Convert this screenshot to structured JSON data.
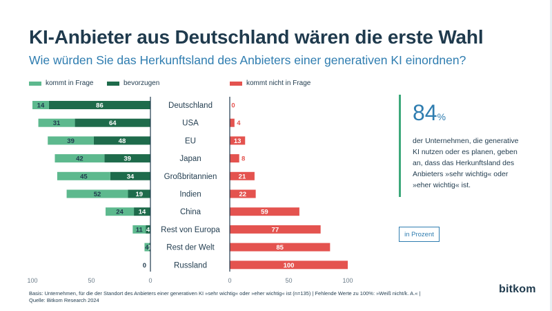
{
  "title": "KI-Anbieter aus Deutschland wären die erste Wahl",
  "subtitle": "Wie würden Sie das Herkunftsland des Anbieters einer generativen KI einordnen?",
  "legend": {
    "kommt_in_frage": "kommt in Frage",
    "bevorzugen": "bevorzugen",
    "kommt_nicht_in_frage": "kommt nicht in Frage"
  },
  "colors": {
    "kommt_in_frage": "#5db98e",
    "bevorzugen": "#1e6b4b",
    "kommt_nicht_in_frage": "#e4534f",
    "title": "#1f3a4d",
    "subtitle": "#2f7db0"
  },
  "callout": {
    "value": "84",
    "unit": "%",
    "text_lines": [
      "der Unternehmen, die generative",
      "KI nutzen oder es planen, geben",
      "an, dass das Herkunftsland des",
      "Anbieters »sehr wichtig« oder",
      "»eher wichtig« ist."
    ]
  },
  "unit_label": "in Prozent",
  "footnote": {
    "line1": "Basis: Unternehmen, für die der Standort des Anbieters einer generativen KI »sehr wichtig« oder »eher wichtig« ist (n=135) | Fehlende Werte zu 100%: »Weiß nicht/k. A.« |",
    "line2": "Quelle: Bitkom Research 2024"
  },
  "logo": "bitkom",
  "chart_data": {
    "type": "bar",
    "orientation": "horizontal",
    "categories": [
      "Deutschland",
      "USA",
      "EU",
      "Japan",
      "Großbritannien",
      "Indien",
      "China",
      "Rest von Europa",
      "Rest der Welt",
      "Russland"
    ],
    "series": [
      {
        "name": "bevorzugen",
        "side": "left",
        "values": [
          86,
          64,
          48,
          39,
          34,
          19,
          14,
          4,
          1,
          0
        ]
      },
      {
        "name": "kommt in Frage",
        "side": "left",
        "values": [
          14,
          31,
          39,
          42,
          45,
          52,
          24,
          11,
          4,
          0
        ]
      },
      {
        "name": "kommt nicht in Frage",
        "side": "right",
        "values": [
          0,
          4,
          13,
          8,
          21,
          22,
          59,
          77,
          85,
          100
        ]
      }
    ],
    "left_axis": {
      "range": [
        100,
        0
      ],
      "ticks": [
        "100",
        "50",
        "0"
      ]
    },
    "right_axis": {
      "range": [
        0,
        100
      ],
      "ticks": [
        "0",
        "50",
        "100"
      ]
    },
    "left_total_label": "0",
    "grid": false,
    "legend_position": "top"
  }
}
